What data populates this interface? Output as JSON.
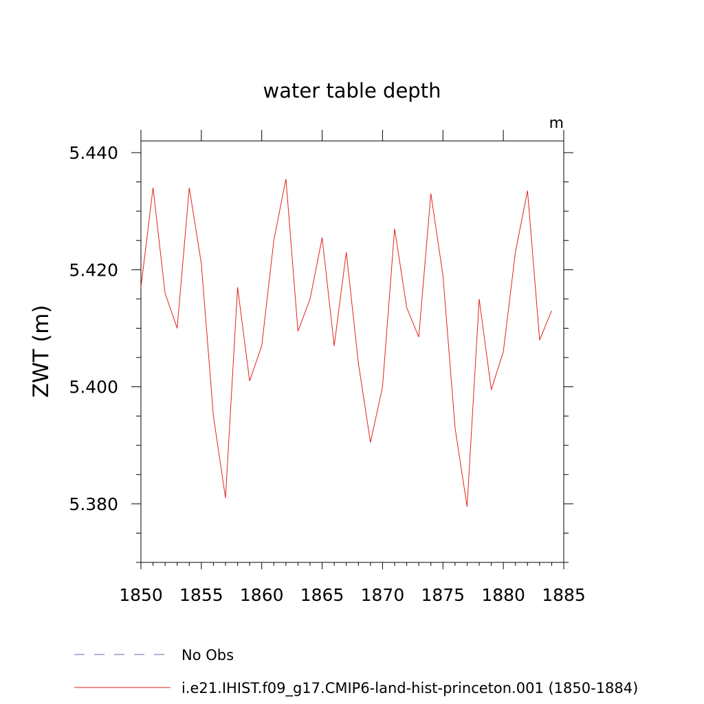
{
  "chart_data": {
    "type": "line",
    "title": "water table depth",
    "units_label": "m",
    "ylabel": "ZWT  (m)",
    "xlabel": "",
    "xlim": [
      1850,
      1885
    ],
    "ylim": [
      5.37,
      5.442
    ],
    "x_ticks": [
      1850,
      1855,
      1860,
      1865,
      1870,
      1875,
      1880,
      1885
    ],
    "x_tick_labels": [
      "1850",
      "1855",
      "1860",
      "1865",
      "1870",
      "1875",
      "1880",
      "1885"
    ],
    "y_ticks": [
      5.38,
      5.4,
      5.42,
      5.44
    ],
    "y_tick_labels": [
      "5.380",
      "5.400",
      "5.420",
      "5.440"
    ],
    "y_minor_step": 0.005,
    "x_minor_step": 1,
    "grid": false,
    "legend_position": "bottom",
    "series": [
      {
        "name": "i.e21.IHIST.f09_g17.CMIP6-land-hist-princeton.001 (1850-1884)",
        "color": "#e0201b",
        "style": "solid",
        "x": [
          1850,
          1851,
          1852,
          1853,
          1854,
          1855,
          1856,
          1857,
          1858,
          1859,
          1860,
          1861,
          1862,
          1863,
          1864,
          1865,
          1866,
          1867,
          1868,
          1869,
          1870,
          1871,
          1872,
          1873,
          1874,
          1875,
          1876,
          1877,
          1878,
          1879,
          1880,
          1881,
          1882,
          1883,
          1884
        ],
        "y": [
          5.417,
          5.434,
          5.416,
          5.41,
          5.434,
          5.421,
          5.395,
          5.381,
          5.417,
          5.401,
          5.407,
          5.425,
          5.4355,
          5.4095,
          5.415,
          5.4255,
          5.407,
          5.423,
          5.404,
          5.3905,
          5.4,
          5.427,
          5.4135,
          5.4085,
          5.433,
          5.419,
          5.393,
          5.3795,
          5.415,
          5.3995,
          5.406,
          5.423,
          5.4335,
          5.408,
          5.413
        ]
      }
    ],
    "legend": [
      {
        "label": "No Obs",
        "color": "#6a5fa8",
        "style": "dashed"
      },
      {
        "label": "i.e21.IHIST.f09_g17.CMIP6-land-hist-princeton.001 (1850-1884)",
        "color": "#e0201b",
        "style": "solid"
      }
    ]
  }
}
